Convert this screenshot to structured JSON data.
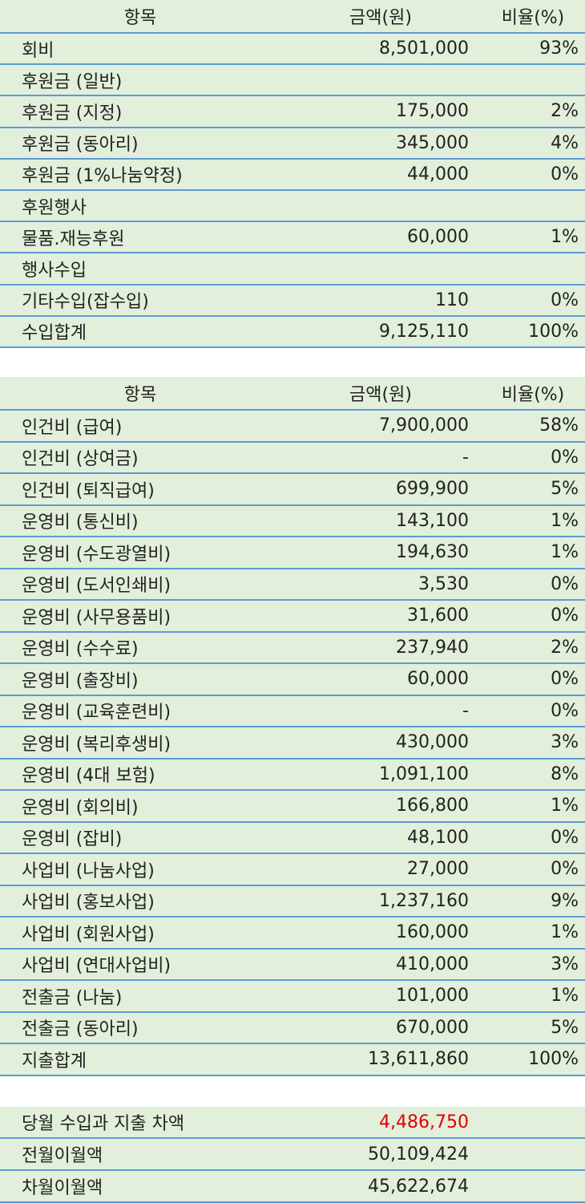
{
  "income": {
    "header": [
      "항목",
      "금액(원)",
      "비율(%)"
    ],
    "rows": [
      [
        "회비",
        "8,501,000",
        "93%"
      ],
      [
        "후원금 (일반)",
        null,
        null
      ],
      [
        "후원금 (지정)",
        "175,000",
        "2%"
      ],
      [
        "후원금 (동아리)",
        "345,000",
        "4%"
      ],
      [
        "후원금 (1%나눔약정)",
        "44,000",
        "0%"
      ],
      [
        "후원행사",
        null,
        null
      ],
      [
        "물품.재능후원",
        "60,000",
        "1%"
      ],
      [
        "행사수입",
        null,
        null
      ],
      [
        "기타수입(잡수입)",
        "110",
        "0%"
      ],
      [
        "수입합계",
        "9,125,110",
        "100%"
      ]
    ]
  },
  "expense": {
    "header": [
      "항목",
      "금액(원)",
      "비율(%)"
    ],
    "rows": [
      [
        "인건비 (급여)",
        "7,900,000",
        "58%"
      ],
      [
        "인건비 (상여금)",
        "-",
        "0%"
      ],
      [
        "인건비 (퇴직급여)",
        "699,900",
        "5%"
      ],
      [
        "운영비 (통신비)",
        "143,100",
        "1%"
      ],
      [
        "운영비 (수도광열비)",
        "194,630",
        "1%"
      ],
      [
        "운영비 (도서인쇄비)",
        "3,530",
        "0%"
      ],
      [
        "운영비 (사무용품비)",
        "31,600",
        "0%"
      ],
      [
        "운영비 (수수료)",
        "237,940",
        "2%"
      ],
      [
        "운영비 (출장비)",
        "60,000",
        "0%"
      ],
      [
        "운영비 (교육훈련비)",
        "-",
        "0%"
      ],
      [
        "운영비 (복리후생비)",
        "430,000",
        "3%"
      ],
      [
        "운영비 (4대 보험)",
        "1,091,100",
        "8%"
      ],
      [
        "운영비 (회의비)",
        "166,800",
        "1%"
      ],
      [
        "운영비 (잡비)",
        "48,100",
        "0%"
      ],
      [
        "사업비 (나눔사업)",
        "27,000",
        "0%"
      ],
      [
        "사업비 (홍보사업)",
        "1,237,160",
        "9%"
      ],
      [
        "사업비 (회원사업)",
        "160,000",
        "1%"
      ],
      [
        "사업비 (연대사업비)",
        "410,000",
        "3%"
      ],
      [
        "전출금 (나눔)",
        "101,000",
        "1%"
      ],
      [
        "전출금 (동아리)",
        "670,000",
        "5%"
      ],
      [
        "지출합계",
        "13,611,860",
        "100%"
      ]
    ]
  },
  "summary": {
    "rows": [
      [
        "당월 수입과 지출 차액",
        "4,486,750"
      ],
      [
        "전월이월액",
        "50,109,424"
      ],
      [
        "차월이월액",
        "45,622,674"
      ]
    ]
  }
}
